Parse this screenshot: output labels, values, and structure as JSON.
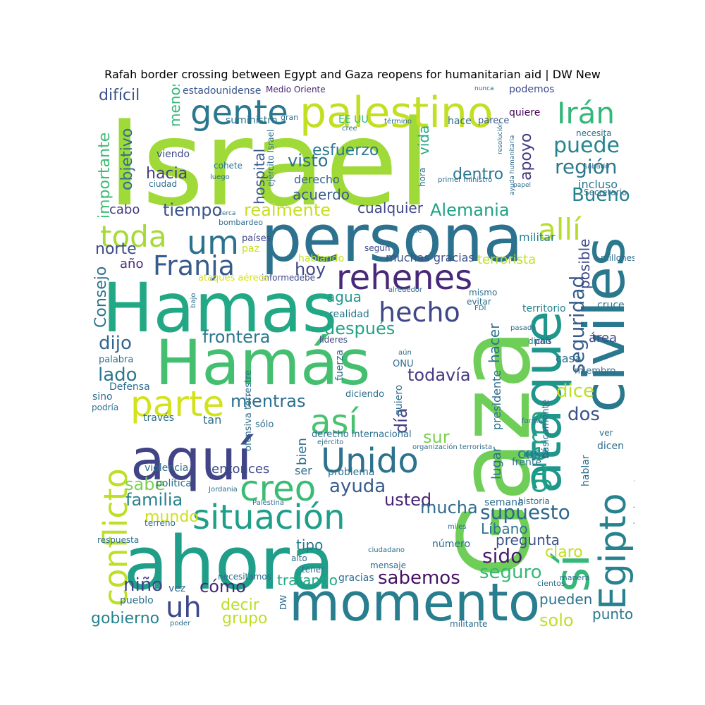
{
  "title": "Rafah border crossing between Egypt and Gaza reopens for humanitarian aid | DW New",
  "words": [
    {
      "text": "Israel",
      "color": "#a0da39"
    },
    {
      "text": "Gaza",
      "color": "#6ece58"
    },
    {
      "text": "persona",
      "color": "#2c728e"
    },
    {
      "text": "Hamas",
      "color": "#22a884"
    },
    {
      "text": "Hamás",
      "color": "#44bf70"
    },
    {
      "text": "ahora",
      "color": "#1f9e89"
    },
    {
      "text": "aquí",
      "color": "#414487"
    },
    {
      "text": "momento",
      "color": "#287d8e"
    },
    {
      "text": "civiles",
      "color": "#2a788e"
    },
    {
      "text": "ataque",
      "color": "#1f968b"
    },
    {
      "text": "palestino",
      "color": "#c2df23"
    },
    {
      "text": "sí",
      "color": "#35b779"
    },
    {
      "text": "Egipto",
      "color": "#26828e"
    },
    {
      "text": "gente",
      "color": "#2a788e"
    },
    {
      "text": "um",
      "color": "#2c728e"
    },
    {
      "text": "rehenes",
      "color": "#482878"
    },
    {
      "text": "situación",
      "color": "#1f9e89"
    },
    {
      "text": "creo",
      "color": "#3bbb75"
    },
    {
      "text": "parte",
      "color": "#d2e21b"
    },
    {
      "text": "así",
      "color": "#4ac16d"
    },
    {
      "text": "Unido",
      "color": "#2c728e"
    },
    {
      "text": "uh",
      "color": "#3e4989"
    },
    {
      "text": "conflicto",
      "color": "#bddf26"
    },
    {
      "text": "toda",
      "color": "#a5db36"
    },
    {
      "text": "allí",
      "color": "#b5de2b"
    },
    {
      "text": "Irán",
      "color": "#35b779"
    },
    {
      "text": "guerra",
      "color": "#1fa188"
    },
    {
      "text": "hecho",
      "color": "#3f4788"
    },
    {
      "text": "Franja",
      "color": "#375b8d"
    },
    {
      "text": "seguridad",
      "color": "#365c8d"
    },
    {
      "text": "puede",
      "color": "#25848e"
    },
    {
      "text": "región",
      "color": "#2a788e"
    },
    {
      "text": "supuesto",
      "color": "#31688e"
    },
    {
      "text": "Bueno",
      "color": "#26828e"
    },
    {
      "text": "importante",
      "color": "#3dbc74"
    },
    {
      "text": "objetivo",
      "color": "#2e6e8e"
    },
    {
      "text": "difícil",
      "color": "#3b528b"
    },
    {
      "text": "menos",
      "color": "#35b779"
    },
    {
      "text": "hacia",
      "color": "#433e85"
    },
    {
      "text": "visto",
      "color": "#2c728e"
    },
    {
      "text": "esfuerzo",
      "color": "#2a788e"
    },
    {
      "text": "vida",
      "color": "#22a884"
    },
    {
      "text": "apoyo",
      "color": "#443983"
    },
    {
      "text": "dentro",
      "color": "#2a788e"
    },
    {
      "text": "hospital",
      "color": "#39568c"
    },
    {
      "text": "tiempo",
      "color": "#3b528b"
    },
    {
      "text": "realmente",
      "color": "#c8e020"
    },
    {
      "text": "Alemania",
      "color": "#20a386"
    },
    {
      "text": "norte",
      "color": "#3e4989"
    },
    {
      "text": "Consejo",
      "color": "#2c728e"
    },
    {
      "text": "hoy",
      "color": "#404688"
    },
    {
      "text": "después",
      "color": "#20a386"
    },
    {
      "text": "frontera",
      "color": "#2a788e"
    },
    {
      "text": "dijo",
      "color": "#31688e"
    },
    {
      "text": "lado",
      "color": "#2a788e"
    },
    {
      "text": "mientras",
      "color": "#2e6e8e"
    },
    {
      "text": "todavía",
      "color": "#443a83"
    },
    {
      "text": "hacer",
      "color": "#2c728e"
    },
    {
      "text": "posible",
      "color": "#3e4a89"
    },
    {
      "text": "dice",
      "color": "#bddf26"
    },
    {
      "text": "dos",
      "color": "#3b528b"
    },
    {
      "text": "día",
      "color": "#433e85"
    },
    {
      "text": "sur",
      "color": "#7ad151"
    },
    {
      "text": "ayuda",
      "color": "#375b8d"
    },
    {
      "text": "familia",
      "color": "#26828e"
    },
    {
      "text": "sabe",
      "color": "#7ad151"
    },
    {
      "text": "usted",
      "color": "#482475"
    },
    {
      "text": "mundo",
      "color": "#d0e11c"
    },
    {
      "text": "mucha",
      "color": "#2f6c8e"
    },
    {
      "text": "sido",
      "color": "#481b6d"
    },
    {
      "text": "seguro",
      "color": "#37b878"
    },
    {
      "text": "sabemos",
      "color": "#471164"
    },
    {
      "text": "cómo",
      "color": "#482878"
    },
    {
      "text": "niño",
      "color": "#414487"
    },
    {
      "text": "decir",
      "color": "#b8de29"
    },
    {
      "text": "grupo",
      "color": "#bddf26"
    },
    {
      "text": "gobierno",
      "color": "#26828e"
    },
    {
      "text": "solo",
      "color": "#bddf26"
    },
    {
      "text": "pueden",
      "color": "#2c728e"
    },
    {
      "text": "punto",
      "color": "#2a788e"
    },
    {
      "text": "entonces",
      "color": "#3e4989"
    },
    {
      "text": "cosa",
      "color": "#2c728e"
    },
    {
      "text": "Líbano",
      "color": "#2c728e"
    },
    {
      "text": "pregunta",
      "color": "#3b528b"
    },
    {
      "text": "tipo",
      "color": "#2a788e"
    },
    {
      "text": "claro",
      "color": "#c2df23"
    },
    {
      "text": "tratando",
      "color": "#22a884"
    },
    {
      "text": "agua",
      "color": "#1f968b"
    },
    {
      "text": "acuerdo",
      "color": "#375b8d"
    },
    {
      "text": "cualquier",
      "color": "#404688"
    },
    {
      "text": "derecho",
      "color": "#33638d"
    },
    {
      "text": "terrorista",
      "color": "#bddf26"
    },
    {
      "text": "muchas gracias",
      "color": "#3b528b"
    },
    {
      "text": "cabo",
      "color": "#453581"
    },
    {
      "text": "año",
      "color": "#482878"
    },
    {
      "text": "militar",
      "color": "#26828e"
    },
    {
      "text": "estadounidense",
      "color": "#39568c"
    },
    {
      "text": "Medio Oriente",
      "color": "#482475"
    },
    {
      "text": "podemos",
      "color": "#3e4989"
    },
    {
      "text": "EE UU",
      "color": "#35b779"
    },
    {
      "text": "suministro",
      "color": "#2c728e"
    },
    {
      "text": "hace",
      "color": "#2e6e8e"
    },
    {
      "text": "parece",
      "color": "#38598c"
    },
    {
      "text": "quiere",
      "color": "#440154"
    },
    {
      "text": "viendo",
      "color": "#3e4989"
    },
    {
      "text": "cohete",
      "color": "#2a788e"
    },
    {
      "text": "incluso",
      "color": "#2a788e"
    },
    {
      "text": "Secretario",
      "color": "#2e6e8e"
    },
    {
      "text": "necesita",
      "color": "#2c728e"
    },
    {
      "text": "según",
      "color": "#3e4989"
    },
    {
      "text": "hablando",
      "color": "#c2df23"
    },
    {
      "text": "países",
      "color": "#3e4989"
    },
    {
      "text": "paz",
      "color": "#c8e020"
    },
    {
      "text": "informe",
      "color": "#3e4989"
    },
    {
      "text": "debe",
      "color": "#3e4989"
    },
    {
      "text": "ataques aéreos",
      "color": "#d8e219"
    },
    {
      "text": "realidad",
      "color": "#2a788e"
    },
    {
      "text": "líderes",
      "color": "#3e4989"
    },
    {
      "text": "cruce",
      "color": "#2a788e"
    },
    {
      "text": "área",
      "color": "#3e4989"
    },
    {
      "text": "territorio",
      "color": "#26828e"
    },
    {
      "text": "dicho",
      "color": "#2a788e"
    },
    {
      "text": "país",
      "color": "#3e4989"
    },
    {
      "text": "casa",
      "color": "#2e6e8e"
    },
    {
      "text": "miembro",
      "color": "#2e6e8e"
    },
    {
      "text": "palabra",
      "color": "#2e6e8e"
    },
    {
      "text": "Defensa",
      "color": "#2e6e8e"
    },
    {
      "text": "sino",
      "color": "#2e6e8e"
    },
    {
      "text": "podría",
      "color": "#2c728e"
    },
    {
      "text": "través",
      "color": "#2e6e8e"
    },
    {
      "text": "tan",
      "color": "#2e6e8e"
    },
    {
      "text": "sólo",
      "color": "#2e6e8e"
    },
    {
      "text": "violencia",
      "color": "#2e6e8e"
    },
    {
      "text": "política",
      "color": "#2e6e8e"
    },
    {
      "text": "ser",
      "color": "#2e6e8e"
    },
    {
      "text": "problema",
      "color": "#2e6e8e"
    },
    {
      "text": "bien",
      "color": "#2e6e8e"
    },
    {
      "text": "lugar",
      "color": "#2e6e8e"
    },
    {
      "text": "presidente",
      "color": "#2e6e8e"
    },
    {
      "text": "semana",
      "color": "#2e6e8e"
    },
    {
      "text": "frente",
      "color": "#2e6e8e"
    },
    {
      "text": "historia",
      "color": "#2e6e8e"
    },
    {
      "text": "hablar",
      "color": "#2e6e8e"
    },
    {
      "text": "dicen",
      "color": "#2e6e8e"
    },
    {
      "text": "ver",
      "color": "#2e6e8e"
    },
    {
      "text": "forma",
      "color": "#2e6e8e"
    },
    {
      "text": "básicamente",
      "color": "#2e6e8e"
    },
    {
      "text": "simplemente",
      "color": "#2e6e8e"
    },
    {
      "text": "millones",
      "color": "#2e6e8e"
    },
    {
      "text": "mensaje",
      "color": "#2e6e8e"
    },
    {
      "text": "alto",
      "color": "#2e6e8e"
    },
    {
      "text": "tener",
      "color": "#2e6e8e"
    },
    {
      "text": "gracias",
      "color": "#2e6e8e"
    },
    {
      "text": "vez",
      "color": "#2e6e8e"
    },
    {
      "text": "pueblo",
      "color": "#2e6e8e"
    },
    {
      "text": "militante",
      "color": "#2e6e8e"
    },
    {
      "text": "respuesta",
      "color": "#2e6e8e"
    },
    {
      "text": "terreno",
      "color": "#2e6e8e"
    },
    {
      "text": "número",
      "color": "#2e6e8e"
    },
    {
      "text": "necesitamos",
      "color": "#2e6e8e"
    },
    {
      "text": "manera",
      "color": "#2e6e8e"
    },
    {
      "text": "cientos",
      "color": "#2e6e8e"
    },
    {
      "text": "poder",
      "color": "#2e6e8e"
    },
    {
      "text": "mismo",
      "color": "#2e6e8e"
    },
    {
      "text": "evitar",
      "color": "#2e6e8e"
    },
    {
      "text": "alrededor",
      "color": "#2e6e8e"
    },
    {
      "text": "pasado",
      "color": "#2e6e8e"
    },
    {
      "text": "FDI",
      "color": "#2e6e8e"
    },
    {
      "text": "fuerza",
      "color": "#2e6e8e"
    },
    {
      "text": "quiero",
      "color": "#2e6e8e"
    },
    {
      "text": "aún",
      "color": "#2e6e8e"
    },
    {
      "text": "ONU",
      "color": "#2e6e8e"
    },
    {
      "text": "diciendo",
      "color": "#2e6e8e"
    },
    {
      "text": "ejército",
      "color": "#2e6e8e"
    },
    {
      "text": "derecho internacional",
      "color": "#2e6e8e"
    },
    {
      "text": "organización terrorista",
      "color": "#2e6e8e"
    },
    {
      "text": "ofensiva terrestre",
      "color": "#2e6e8e"
    },
    {
      "text": "ciudadano",
      "color": "#2e6e8e"
    },
    {
      "text": "Jordania",
      "color": "#2e6e8e"
    },
    {
      "text": "Palestina",
      "color": "#2e6e8e"
    },
    {
      "text": "miles",
      "color": "#2e6e8e"
    },
    {
      "text": "DW",
      "color": "#2e6e8e"
    },
    {
      "text": "bajo",
      "color": "#2e6e8e"
    },
    {
      "text": "bombardeo",
      "color": "#2e6e8e"
    },
    {
      "text": "cerca",
      "color": "#2e6e8e"
    },
    {
      "text": "sé",
      "color": "#2e6e8e"
    },
    {
      "text": "luego",
      "color": "#2e6e8e"
    },
    {
      "text": "ciudad",
      "color": "#2e6e8e"
    },
    {
      "text": "ejército Israel",
      "color": "#2e6e8e"
    },
    {
      "text": "hora",
      "color": "#2e6e8e"
    },
    {
      "text": "primer ministro",
      "color": "#2e6e8e"
    },
    {
      "text": "ayuda humanitaria",
      "color": "#2e6e8e"
    },
    {
      "text": "resolución",
      "color": "#2e6e8e"
    },
    {
      "text": "sábado",
      "color": "#2e6e8e"
    },
    {
      "text": "papel",
      "color": "#2e6e8e"
    },
    {
      "text": "gran",
      "color": "#2e6e8e"
    },
    {
      "text": "cree",
      "color": "#2e6e8e"
    },
    {
      "text": "término",
      "color": "#2e6e8e"
    },
    {
      "text": "nunca",
      "color": "#2e6e8e"
    }
  ]
}
